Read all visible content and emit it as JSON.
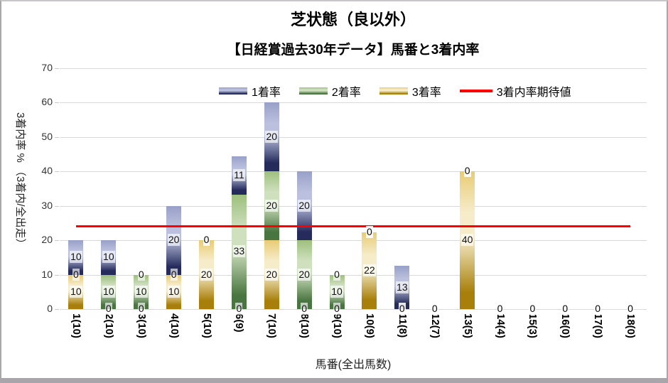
{
  "chart": {
    "title": "芝状態（良以外）",
    "subtitle": "【日経賞過去30年データ】馬番と3着内率",
    "y_axis_title": "3着内率 % （3着内/全出走）",
    "x_axis_title": "馬番(全出馬数)",
    "legend": [
      {
        "label": "1着率",
        "type": "swatch",
        "series": "win"
      },
      {
        "label": "2着率",
        "type": "swatch",
        "series": "second"
      },
      {
        "label": "3着率",
        "type": "swatch",
        "series": "third"
      },
      {
        "label": "3着内率期待値",
        "type": "line",
        "series": "expected"
      }
    ]
  },
  "chart_data": {
    "type": "bar",
    "stacked": true,
    "title": "芝状態（良以外）",
    "subtitle": "【日経賞過去30年データ】馬番と3着内率",
    "xlabel": "馬番(全出馬数)",
    "ylabel": "3着内率 % （3着内/全出走）",
    "ylim": [
      0,
      70
    ],
    "ytick_interval": 10,
    "grid": true,
    "legend_position": "top-inside",
    "categories": [
      "1(10)",
      "2(10)",
      "3(10)",
      "4(10)",
      "5(10)",
      "6(9)",
      "7(10)",
      "8(10)",
      "9(10)",
      "10(9)",
      "11(8)",
      "12(7)",
      "13(5)",
      "14(4)",
      "15(3)",
      "16(0)",
      "17(0)",
      "18(0)"
    ],
    "series": [
      {
        "name": "1着率",
        "key": "win",
        "values": [
          10,
          10,
          0,
          20,
          0,
          11.1,
          20,
          20,
          0,
          0,
          12.5,
          0,
          0,
          0,
          0,
          0,
          0,
          0
        ]
      },
      {
        "name": "2着率",
        "key": "second",
        "values": [
          0,
          10,
          10,
          0,
          0,
          33.3,
          20,
          20,
          10,
          0,
          0,
          0,
          0,
          0,
          0,
          0,
          0,
          0
        ]
      },
      {
        "name": "3着率",
        "key": "third",
        "values": [
          10,
          0,
          0,
          10,
          20,
          0,
          20,
          0,
          0,
          22.2,
          0,
          0,
          40,
          0,
          0,
          0,
          0,
          0
        ]
      }
    ],
    "segment_labels_rounded": true,
    "expected_line": {
      "name": "3着内率期待値",
      "value": 24
    }
  },
  "colors": {
    "win": {
      "mid": "#98a0c8",
      "light": "#bac0dd",
      "dark": "#252c5c"
    },
    "second": {
      "mid": "#9dc07d",
      "light": "#cfe0bf",
      "dark": "#497540"
    },
    "third": {
      "mid": "#e8cb74",
      "light": "#f6ecca",
      "dark": "#a87f0a"
    },
    "expected_line": "#ff0000",
    "gridline": "#d9d9d9",
    "window_edge": "#a9a6ab"
  }
}
